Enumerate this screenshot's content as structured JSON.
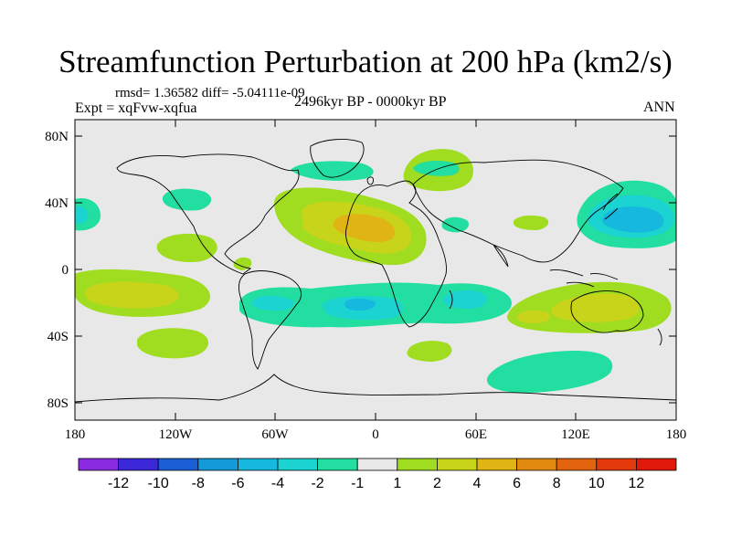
{
  "title": "Streamfunction Perturbation at 200 hPa (km2/s)",
  "stats": "rmsd= 1.36582 diff= -5.04111e-09",
  "experiment": "Expt = xqFvw-xqfua",
  "period": "2496kyr BP - 0000kyr BP",
  "season": "ANN",
  "lat_ticks": [
    "80N",
    "40N",
    "0",
    "40S",
    "80S"
  ],
  "lon_ticks": [
    "180",
    "120W",
    "60W",
    "0",
    "60E",
    "120E",
    "180"
  ],
  "colorbar": {
    "labels": [
      "-12",
      "-10",
      "-8",
      "-6",
      "-4",
      "-2",
      "-1",
      "1",
      "2",
      "4",
      "6",
      "8",
      "10",
      "12"
    ],
    "colors": [
      "#8a2be2",
      "#3b28d8",
      "#1b5fd6",
      "#149ad8",
      "#16b8dd",
      "#1bd3d0",
      "#22dea0",
      "#e8e8e8",
      "#a0dc20",
      "#c8d41a",
      "#e0b414",
      "#e28a10",
      "#e2640e",
      "#e23a0c",
      "#e01a0a"
    ]
  },
  "colors": {
    "background": "#e8e8e8",
    "c_neg1": "#22dea0",
    "c_neg2": "#1bd3d0",
    "c_neg3": "#16b8dd",
    "c_pos1": "#a0dc20",
    "c_pos2": "#c8d41a",
    "c_pos3": "#e0b414"
  }
}
